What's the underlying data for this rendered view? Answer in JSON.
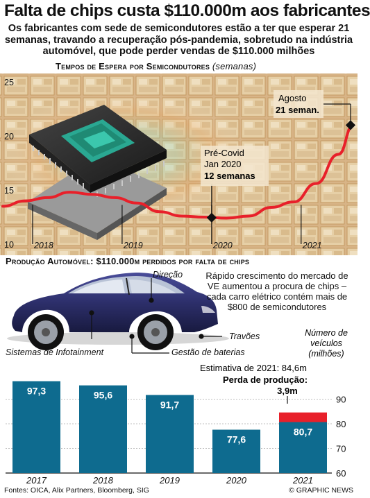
{
  "header": {
    "title": "Falta de chips custa $110.000m aos fabricantes",
    "subtitle": "Os fabricantes com sede de semicondutores estão a ter que esperar 21 semanas, travando a recuperação pós-pandemia, sobretudo na indústria automóvel, que pode perder vendas de $110.000 milhões"
  },
  "colors": {
    "line": "#e8202a",
    "bar": "#0e6b8f",
    "loss": "#e8202a",
    "wafer": "#d9b98a",
    "car_body": "#2d2f6b"
  },
  "chart_data": [
    {
      "type": "line",
      "title": "Tempos de Espera por Semicondutores",
      "unit": "(semanas)",
      "x": [
        "2017-09",
        "2017-12",
        "2018-03",
        "2018-06",
        "2018-09",
        "2018-12",
        "2019-03",
        "2019-06",
        "2019-09",
        "2019-12",
        "2020-03",
        "2020-06",
        "2020-09",
        "2020-12",
        "2021-03",
        "2021-06",
        "2021-08"
      ],
      "values": [
        13.5,
        14.0,
        14.3,
        14.8,
        14.6,
        14.3,
        13.8,
        13.0,
        12.6,
        12.5,
        12.4,
        12.6,
        13.4,
        13.9,
        15.6,
        18.3,
        21.0
      ],
      "ylim": [
        10,
        25
      ],
      "yticks": [
        "10",
        "15",
        "20",
        "25"
      ],
      "xticks": [
        "2018",
        "2019",
        "2020",
        "2021"
      ],
      "grid": false,
      "annotations": {
        "precovid_lines": [
          "Pré-Covid",
          "Jan 2020"
        ],
        "precovid_value": "12 semanas",
        "august_label": "Agosto",
        "august_value": "21 seman."
      }
    },
    {
      "type": "bar",
      "title": "Produção Automóvel: $110.000m perdidos por falta de chips",
      "categories": [
        "2017",
        "2018",
        "2019",
        "2020",
        "2021"
      ],
      "values": [
        97.3,
        95.6,
        91.7,
        77.6,
        80.7
      ],
      "value_labels": [
        "97,3",
        "95,6",
        "91,7",
        "77,6",
        "80,7"
      ],
      "loss_2021": 3.9,
      "loss_label": "3,9m",
      "ylim": [
        60,
        100
      ],
      "yticks": [
        "60",
        "70",
        "80",
        "90"
      ],
      "axis_title": [
        "Número de",
        "veículos",
        "(milhões)"
      ],
      "estimate_text": "Estimativa de 2021: 84,6m",
      "loss_title": "Perda de produção:"
    }
  ],
  "car": {
    "labels": {
      "direction": "Direção",
      "brakes": "Travões",
      "infotainment": "Sistemas de Infotainment",
      "battery": "Gestão de baterias"
    },
    "note": "Rápido crescimento do mercado de VE aumentou a procura de chips – cada carro elétrico contém mais de $800 de semicondutores"
  },
  "watermark": "GRAPHIC NEWS",
  "footer": {
    "sources": "Fontes: OICA, Alix Partners, Bloomberg, SIG",
    "credit": "© GRAPHIC NEWS"
  }
}
